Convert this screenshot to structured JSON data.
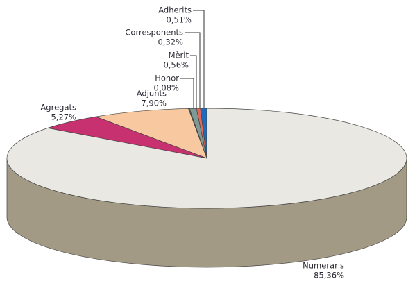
{
  "chart_data": {
    "type": "pie3d",
    "categories": [
      "Adherits",
      "Corresponents",
      "Mèrit",
      "Honor",
      "Adjunts",
      "Agregats",
      "Numeraris"
    ],
    "values": [
      0.51,
      0.32,
      0.56,
      0.08,
      7.9,
      5.27,
      85.36
    ],
    "value_labels": [
      "0,51%",
      "0,32%",
      "0,56%",
      "0,08%",
      "7,90%",
      "5,27%",
      "85,36%"
    ],
    "colors": [
      "#1d6cc0",
      "#e0685c",
      "#7f9a94",
      "#4a5a58",
      "#f8c9a0",
      "#c8316f",
      "#e9e8e3"
    ],
    "side_colors": [
      "#124a86",
      "#9c463e",
      "#556a66",
      "#2c3836",
      "#b48e6c",
      "#86204a",
      "#a39a86"
    ]
  }
}
